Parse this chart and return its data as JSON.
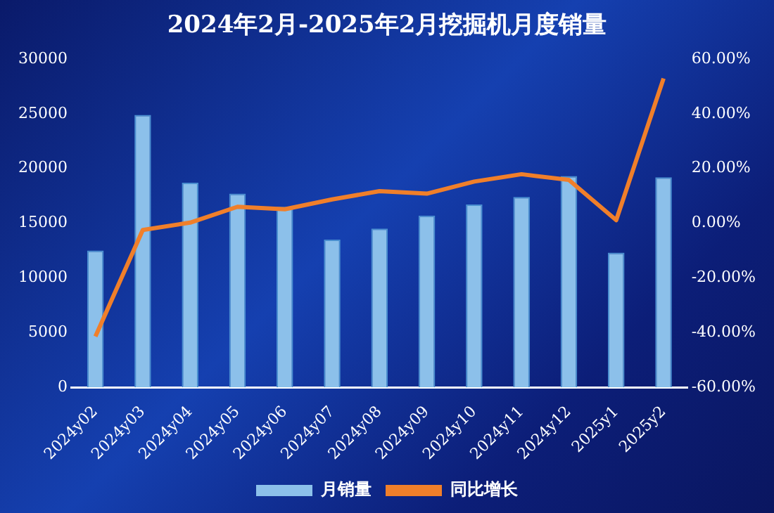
{
  "chart_data": {
    "type": "bar",
    "title": "2024年2月-2025年2月挖掘机月度销量",
    "categories": [
      "2024y02",
      "2024y03",
      "2024y04",
      "2024y05",
      "2024y06",
      "2024y07",
      "2024y08",
      "2024y09",
      "2024y10",
      "2024y11",
      "2024y12",
      "2025y1",
      "2025y2"
    ],
    "series": [
      {
        "name": "月销量",
        "color": "#8cc0ea",
        "values": [
          12500,
          24900,
          18700,
          17700,
          16500,
          13500,
          14500,
          15700,
          16700,
          17400,
          19300,
          12300,
          19200
        ]
      },
      {
        "name": "同比增长",
        "type": "line",
        "axis": "y2",
        "color": "#f07f2a",
        "values": [
          -41.4,
          -2.5,
          0.2,
          6.0,
          5.1,
          8.7,
          11.7,
          10.8,
          15.2,
          17.9,
          15.8,
          1.1,
          52.9
        ]
      }
    ],
    "ylim": [
      0,
      30000
    ],
    "yticks": [
      0,
      5000,
      10000,
      15000,
      20000,
      25000,
      30000
    ],
    "y2lim": [
      -60,
      60
    ],
    "y2ticks": [
      {
        "value": -60,
        "label": "-60.00%"
      },
      {
        "value": -40,
        "label": "-40.00%"
      },
      {
        "value": -20,
        "label": "-20.00%"
      },
      {
        "value": 0,
        "label": "0.00%"
      },
      {
        "value": 20,
        "label": "20.00%"
      },
      {
        "value": 40,
        "label": "40.00%"
      },
      {
        "value": 60,
        "label": "60.00%"
      }
    ],
    "grid": false,
    "legend": "bottom",
    "marker": "none",
    "line_style": "solid"
  }
}
